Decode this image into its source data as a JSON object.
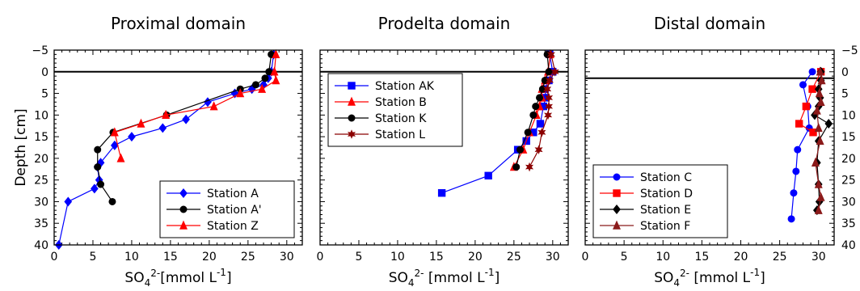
{
  "chart_data": [
    {
      "type": "line",
      "title": "Proximal domain",
      "xlabel_base": "SO",
      "xlabel_sub": "4",
      "xlabel_sup": "2-",
      "xlabel_rest": "[mmol L",
      "xlabel_unit_sup": "-1",
      "xlabel_close": "]",
      "ylabel": "Depth [cm]",
      "xlim": [
        0,
        32
      ],
      "ylim": [
        40,
        -5
      ],
      "xticks": [
        "0",
        "5",
        "10",
        "15",
        "20",
        "25",
        "30"
      ],
      "yticks": [
        "−5",
        "0",
        "5",
        "10",
        "15",
        "20",
        "25",
        "30",
        "35",
        "40"
      ],
      "y_ticks_left": true,
      "legend_position": "lower-right",
      "reference_line_y": 0,
      "series": [
        {
          "name": "Station A",
          "color": "#0000ff",
          "marker": "diamond",
          "points": [
            [
              28.3,
              -4
            ],
            [
              28.0,
              0
            ],
            [
              27.6,
              1.5
            ],
            [
              27.0,
              3
            ],
            [
              25.5,
              4
            ],
            [
              23.3,
              5
            ],
            [
              19.8,
              7
            ],
            [
              17.0,
              11
            ],
            [
              14.0,
              13
            ],
            [
              10.0,
              15
            ],
            [
              7.8,
              17
            ],
            [
              6.0,
              21
            ],
            [
              5.6,
              22
            ],
            [
              5.8,
              25
            ],
            [
              5.2,
              27
            ],
            [
              1.8,
              30
            ],
            [
              0.6,
              40
            ]
          ]
        },
        {
          "name": "Station A'",
          "color": "#000000",
          "marker": "circle",
          "points": [
            [
              28.0,
              -4
            ],
            [
              27.7,
              0
            ],
            [
              27.2,
              1.5
            ],
            [
              26.0,
              3
            ],
            [
              24.0,
              4
            ],
            [
              14.5,
              10
            ],
            [
              7.6,
              14
            ],
            [
              5.6,
              18
            ],
            [
              5.6,
              22
            ],
            [
              6.0,
              26
            ],
            [
              7.5,
              30
            ]
          ]
        },
        {
          "name": "Station Z",
          "color": "#ff0000",
          "marker": "triangle",
          "points": [
            [
              28.6,
              -4
            ],
            [
              28.4,
              0
            ],
            [
              28.6,
              2
            ],
            [
              26.8,
              4
            ],
            [
              24.0,
              5
            ],
            [
              20.6,
              8
            ],
            [
              14.4,
              10
            ],
            [
              11.2,
              12
            ],
            [
              7.8,
              14
            ],
            [
              8.6,
              20
            ]
          ]
        }
      ]
    },
    {
      "type": "line",
      "title": "Prodelta domain",
      "xlabel_base": "SO",
      "xlabel_sub": "4",
      "xlabel_sup": "2-",
      "xlabel_rest": " [mmol L",
      "xlabel_unit_sup": "-1",
      "xlabel_close": "]",
      "ylabel": "",
      "xlim": [
        0,
        32
      ],
      "ylim": [
        40,
        -5
      ],
      "xticks": [
        "0",
        "5",
        "10",
        "15",
        "20",
        "25",
        "30"
      ],
      "yticks": [],
      "legend_position": "upper-left",
      "reference_line_y": 0,
      "series": [
        {
          "name": "Station AK",
          "color": "#0000ff",
          "marker": "square",
          "points": [
            [
              29.6,
              -4
            ],
            [
              30.0,
              0
            ],
            [
              29.5,
              2
            ],
            [
              29.0,
              4
            ],
            [
              29.1,
              6
            ],
            [
              28.8,
              8
            ],
            [
              28.4,
              12
            ],
            [
              27.5,
              14
            ],
            [
              26.6,
              16
            ],
            [
              25.5,
              18
            ],
            [
              21.7,
              24
            ],
            [
              15.7,
              28
            ]
          ]
        },
        {
          "name": "Station B",
          "color": "#ff0000",
          "marker": "triangle",
          "points": [
            [
              29.7,
              -4
            ],
            [
              29.4,
              0
            ],
            [
              29.0,
              2
            ],
            [
              28.6,
              4
            ],
            [
              28.6,
              6
            ],
            [
              28.3,
              8
            ],
            [
              27.9,
              10
            ],
            [
              27.0,
              14
            ],
            [
              26.2,
              18
            ],
            [
              25.0,
              22
            ]
          ]
        },
        {
          "name": "Station K",
          "color": "#000000",
          "marker": "circle",
          "points": [
            [
              29.3,
              -4
            ],
            [
              29.5,
              0
            ],
            [
              29.0,
              2
            ],
            [
              28.7,
              4
            ],
            [
              28.3,
              6
            ],
            [
              27.8,
              8
            ],
            [
              27.5,
              10
            ],
            [
              26.8,
              14
            ],
            [
              25.8,
              18
            ],
            [
              25.3,
              22
            ]
          ]
        },
        {
          "name": "Station L",
          "color": "#8b0000",
          "marker": "star",
          "points": [
            [
              29.8,
              -4
            ],
            [
              30.3,
              0
            ],
            [
              29.6,
              2
            ],
            [
              29.3,
              4
            ],
            [
              29.5,
              6
            ],
            [
              29.5,
              8
            ],
            [
              29.4,
              10
            ],
            [
              28.6,
              14
            ],
            [
              28.2,
              18
            ],
            [
              27.0,
              22
            ]
          ]
        }
      ]
    },
    {
      "type": "line",
      "title": "Distal domain",
      "xlabel_base": "SO",
      "xlabel_sub": "4",
      "xlabel_sup": "2-",
      "xlabel_rest": " [mmol L",
      "xlabel_unit_sup": "-1",
      "xlabel_close": "]",
      "ylabel": "Depth [cm]",
      "xlim": [
        0,
        32
      ],
      "ylim": [
        40,
        -5
      ],
      "xticks": [
        "0",
        "5",
        "10",
        "15",
        "20",
        "25",
        "30"
      ],
      "yticks": [
        "−5",
        "0",
        "5",
        "10",
        "15",
        "20",
        "25",
        "30",
        "35",
        "40"
      ],
      "y_ticks_right": true,
      "legend_position": "lower-left",
      "reference_line_y": 1.5,
      "series": [
        {
          "name": "Station C",
          "color": "#0000ff",
          "marker": "circle",
          "points": [
            [
              29.2,
              0
            ],
            [
              28.0,
              3
            ],
            [
              28.6,
              8
            ],
            [
              28.8,
              13
            ],
            [
              27.3,
              18
            ],
            [
              27.1,
              23
            ],
            [
              26.8,
              28
            ],
            [
              26.5,
              34
            ]
          ]
        },
        {
          "name": "Station D",
          "color": "#ff0000",
          "marker": "square",
          "points": [
            [
              30.3,
              0
            ],
            [
              29.2,
              4
            ],
            [
              28.4,
              8
            ],
            [
              27.5,
              12
            ],
            [
              29.3,
              14
            ]
          ]
        },
        {
          "name": "Station E",
          "color": "#000000",
          "marker": "diamond",
          "points": [
            [
              30.3,
              0
            ],
            [
              30.3,
              2
            ],
            [
              30.0,
              4
            ],
            [
              30.2,
              6
            ],
            [
              30.0,
              8
            ],
            [
              29.5,
              10
            ],
            [
              31.3,
              12
            ],
            [
              30.0,
              16
            ],
            [
              29.8,
              21
            ],
            [
              30.0,
              26
            ],
            [
              30.1,
              30
            ],
            [
              29.8,
              32
            ]
          ]
        },
        {
          "name": "Station F",
          "color": "#8b1a1a",
          "marker": "triangle",
          "points": [
            [
              30.2,
              0
            ],
            [
              30.4,
              2
            ],
            [
              30.1,
              5
            ],
            [
              30.3,
              7
            ],
            [
              29.8,
              9
            ],
            [
              30.0,
              13
            ],
            [
              30.2,
              16
            ],
            [
              29.6,
              21
            ],
            [
              30.0,
              26
            ],
            [
              30.3,
              29
            ],
            [
              30.0,
              32
            ]
          ]
        }
      ]
    }
  ]
}
